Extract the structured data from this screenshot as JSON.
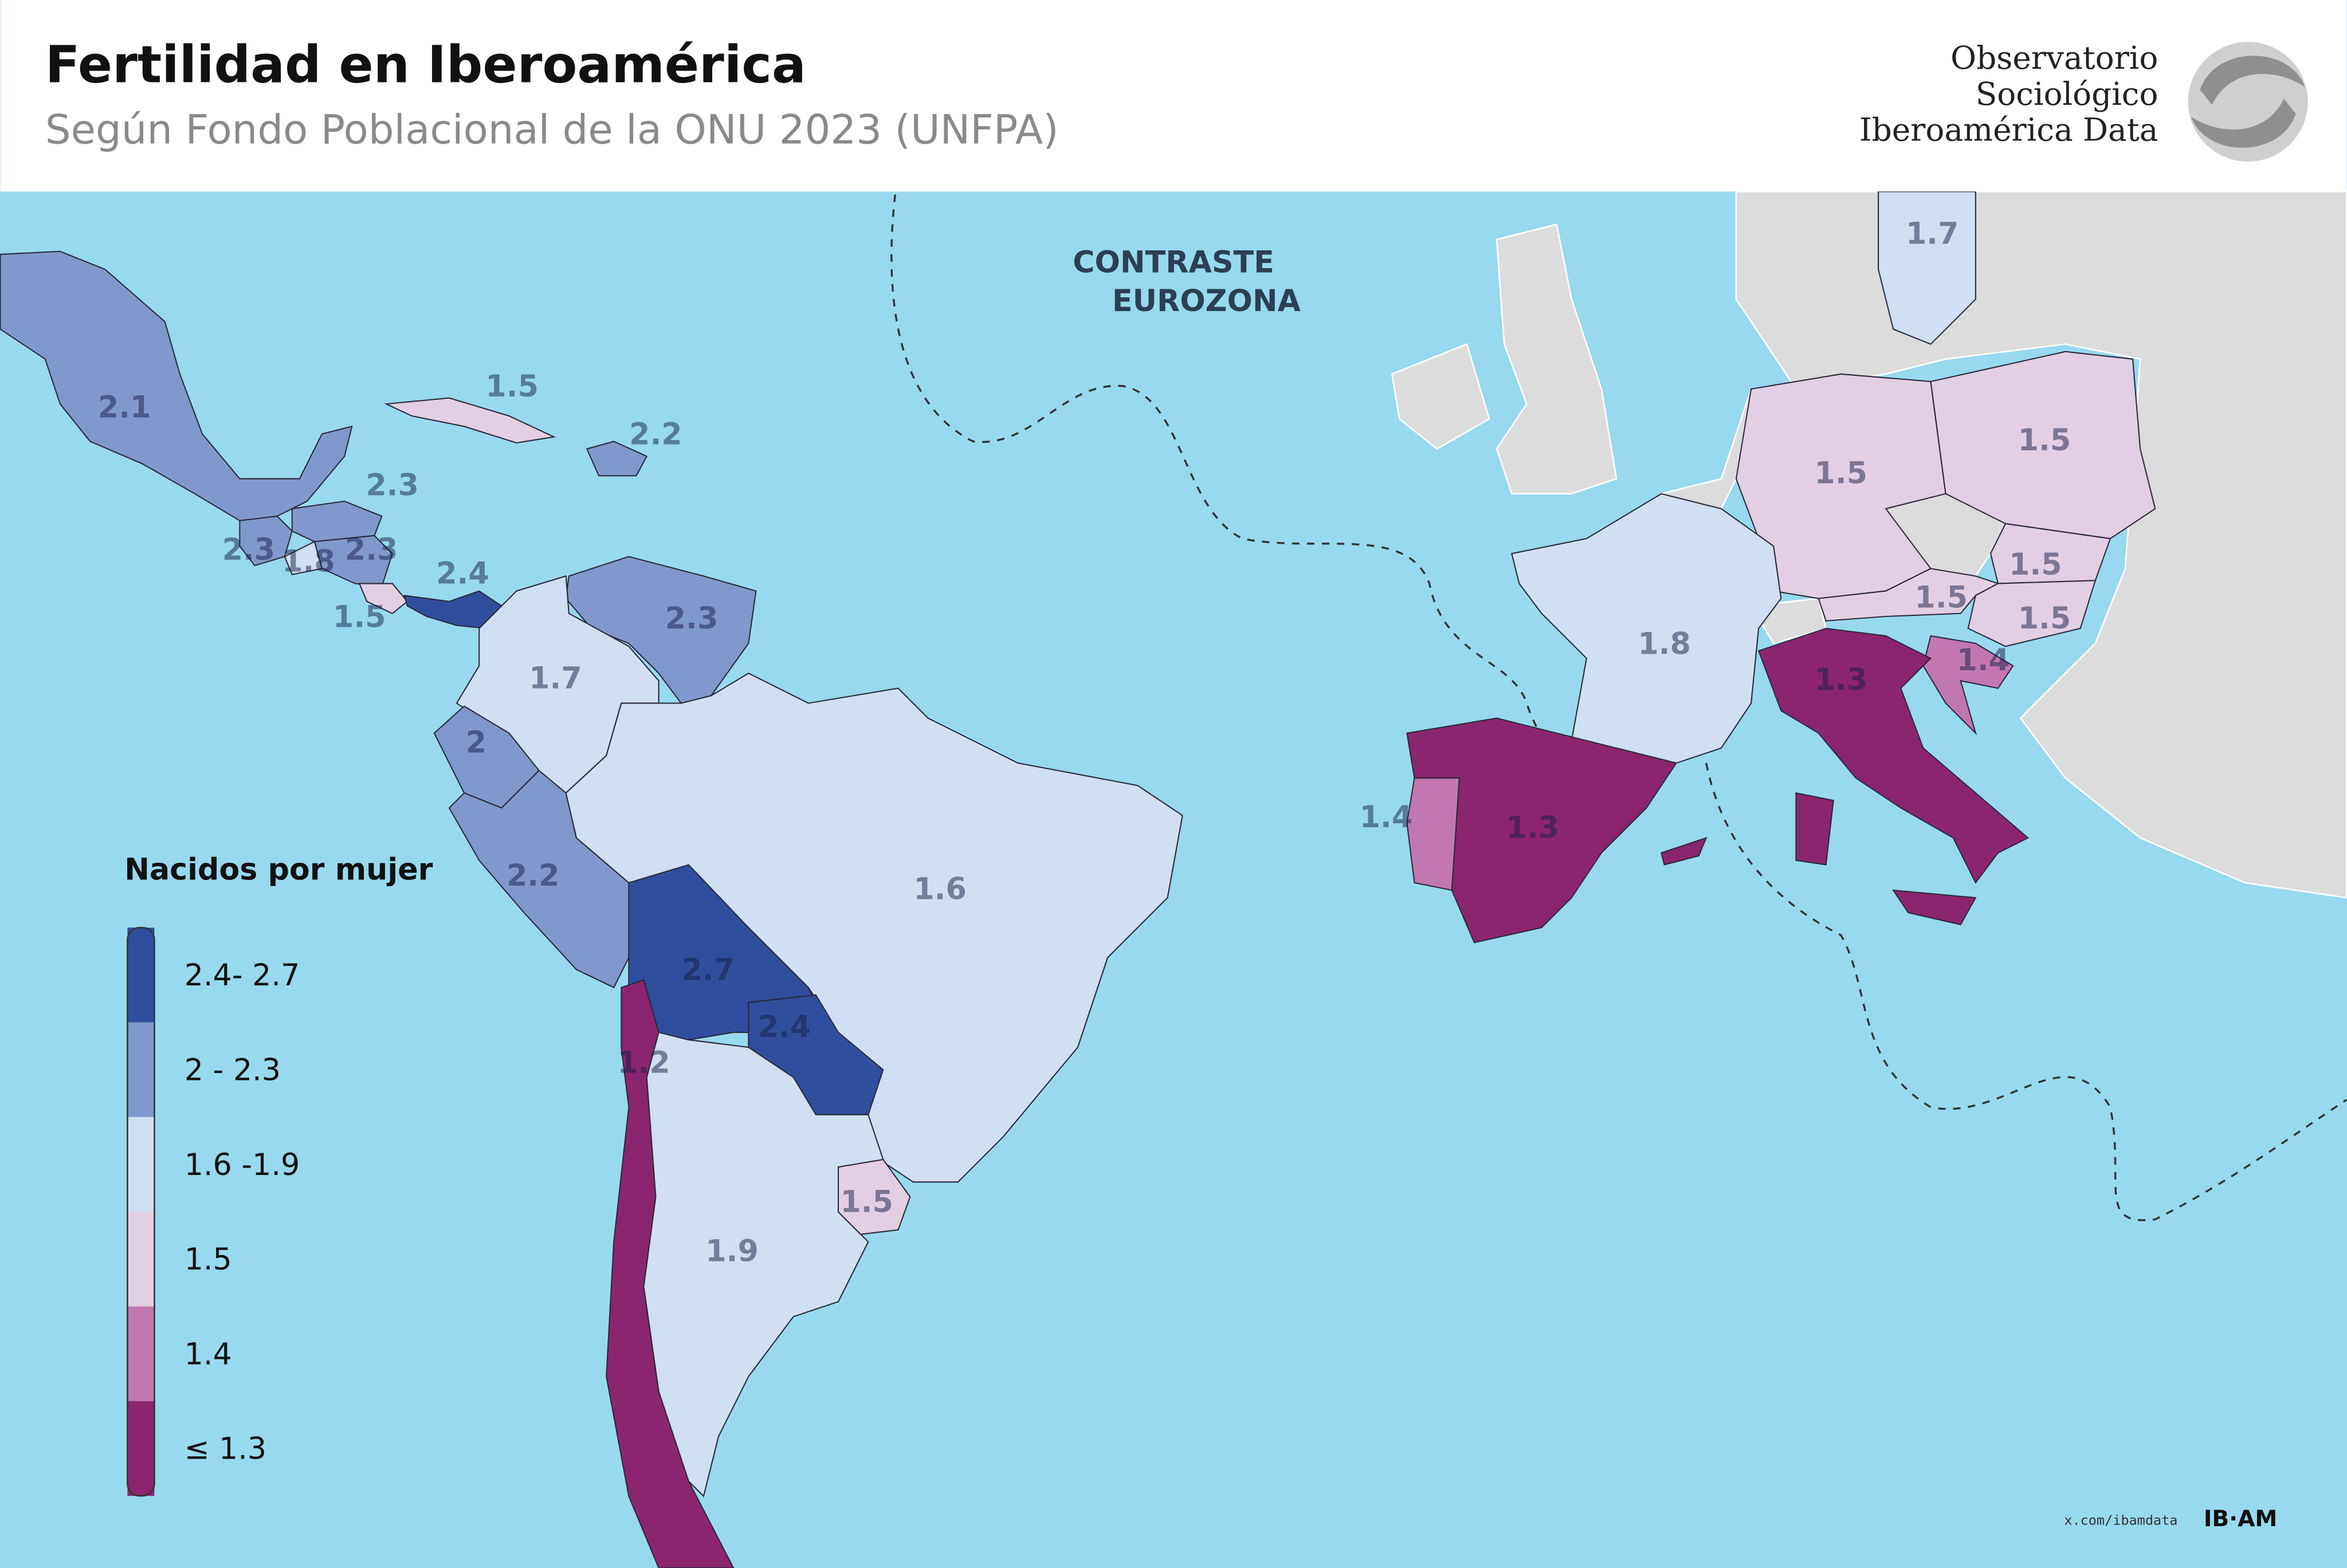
{
  "header": {
    "title": "Fertilidad en Iberoamérica",
    "subtitle": "Según Fondo Poblacional de la ONU 2023 (UNFPA)",
    "logo_lines": [
      "Observatorio",
      "Sociológico",
      "Iberoamérica Data"
    ]
  },
  "annotation": [
    "CONTRASTE",
    "EUROZONA"
  ],
  "legend": {
    "title": "Nacidos por mujer",
    "items": [
      {
        "label": "2.4- 2.7",
        "color": "#2f4f9e"
      },
      {
        "label": "2 - 2.3",
        "color": "#8099cc"
      },
      {
        "label": "1.6 -1.9",
        "color": "#d0dff3"
      },
      {
        "label": "1.5",
        "color": "#e3cfe3"
      },
      {
        "label": "1.4",
        "color": "#c277b3"
      },
      {
        "label": "≤ 1.3",
        "color": "#8b2571"
      }
    ]
  },
  "regions": [
    {
      "label": "2.1",
      "color": "#8099cc"
    },
    {
      "label": "1.5",
      "color": "#e3cfe3"
    },
    {
      "label": "2.2",
      "color": "#8099cc"
    },
    {
      "label": "2.3",
      "color": "#8099cc"
    },
    {
      "label": "2.3",
      "color": "#8099cc"
    },
    {
      "label": "1.8",
      "color": "#d0dff3"
    },
    {
      "label": "2.3",
      "color": "#8099cc"
    },
    {
      "label": "1.5",
      "color": "#e3cfe3"
    },
    {
      "label": "2.4",
      "color": "#2f4f9e"
    },
    {
      "label": "2.3",
      "color": "#8099cc"
    },
    {
      "label": "1.7",
      "color": "#d0dff3"
    },
    {
      "label": "2",
      "color": "#8099cc"
    },
    {
      "label": "2.2",
      "color": "#8099cc"
    },
    {
      "label": "1.6",
      "color": "#d0dff3"
    },
    {
      "label": "2.7",
      "color": "#2f4f9e"
    },
    {
      "label": "2.4",
      "color": "#2f4f9e"
    },
    {
      "label": "1.2",
      "color": "#8b2571"
    },
    {
      "label": "1.9",
      "color": "#d0dff3"
    },
    {
      "label": "1.5",
      "color": "#e3cfe3"
    },
    {
      "label": "1.7",
      "color": "#d0dff3"
    },
    {
      "label": "1.5",
      "color": "#e3cfe3"
    },
    {
      "label": "1.5",
      "color": "#e3cfe3"
    },
    {
      "label": "1.5",
      "color": "#e3cfe3"
    },
    {
      "label": "1.5",
      "color": "#e3cfe3"
    },
    {
      "label": "1.5",
      "color": "#e3cfe3"
    },
    {
      "label": "1.4",
      "color": "#c277b3"
    },
    {
      "label": "1.8",
      "color": "#d0dff3"
    },
    {
      "label": "1.3",
      "color": "#8b2571"
    },
    {
      "label": "1.3",
      "color": "#8b2571"
    },
    {
      "label": "1.4",
      "color": "#c277b3"
    }
  ],
  "footer": {
    "handle": "x.com/ibamdata",
    "brand": "IB·AM"
  }
}
